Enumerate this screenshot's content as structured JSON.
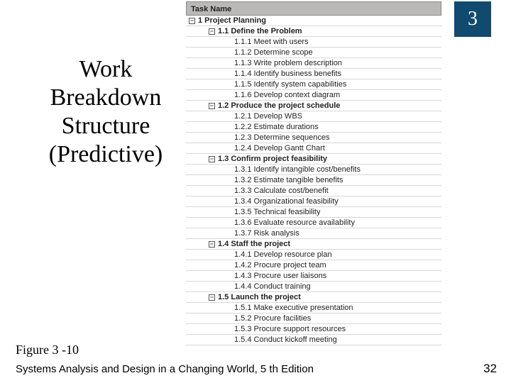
{
  "chapter": "3",
  "title": "Work Breakdown Structure (Predictive)",
  "figure_label": "Figure 3 -10",
  "footer_text": "Systems Analysis and Design in a Changing World, 5 th Edition",
  "page_number": "32",
  "wbs_header": "Task Name",
  "wbs": [
    {
      "level": 0,
      "bold": true,
      "box": true,
      "text": "1 Project Planning"
    },
    {
      "level": 1,
      "bold": true,
      "box": true,
      "text": "1.1 Define the Problem"
    },
    {
      "level": 2,
      "bold": false,
      "box": false,
      "text": "1.1.1 Meet with users"
    },
    {
      "level": 2,
      "bold": false,
      "box": false,
      "text": "1.1.2 Determine scope"
    },
    {
      "level": 2,
      "bold": false,
      "box": false,
      "text": "1.1.3 Write problem description"
    },
    {
      "level": 2,
      "bold": false,
      "box": false,
      "text": "1.1.4 Identify business benefits"
    },
    {
      "level": 2,
      "bold": false,
      "box": false,
      "text": "1.1.5 Identify system capabilities"
    },
    {
      "level": 2,
      "bold": false,
      "box": false,
      "text": "1.1.6 Develop context diagram"
    },
    {
      "level": 1,
      "bold": true,
      "box": true,
      "text": "1.2 Produce the project schedule"
    },
    {
      "level": 2,
      "bold": false,
      "box": false,
      "text": "1.2.1 Develop WBS"
    },
    {
      "level": 2,
      "bold": false,
      "box": false,
      "text": "1.2.2 Estimate durations"
    },
    {
      "level": 2,
      "bold": false,
      "box": false,
      "text": "1.2.3 Determine sequences"
    },
    {
      "level": 2,
      "bold": false,
      "box": false,
      "text": "1.2.4 Develop Gantt Chart"
    },
    {
      "level": 1,
      "bold": true,
      "box": true,
      "text": "1.3 Confirm project feasibility"
    },
    {
      "level": 2,
      "bold": false,
      "box": false,
      "text": "1.3.1 Identify intangible cost/benefits"
    },
    {
      "level": 2,
      "bold": false,
      "box": false,
      "text": "1.3.2 Estimate tangible benefits"
    },
    {
      "level": 2,
      "bold": false,
      "box": false,
      "text": "1.3.3 Calculate cost/benefit"
    },
    {
      "level": 2,
      "bold": false,
      "box": false,
      "text": "1.3.4 Organizational feasibility"
    },
    {
      "level": 2,
      "bold": false,
      "box": false,
      "text": "1.3.5 Technical feasibility"
    },
    {
      "level": 2,
      "bold": false,
      "box": false,
      "text": "1.3.6 Evaluate resource availability"
    },
    {
      "level": 2,
      "bold": false,
      "box": false,
      "text": "1.3.7 Risk analysis"
    },
    {
      "level": 1,
      "bold": true,
      "box": true,
      "text": "1.4 Staff the project"
    },
    {
      "level": 2,
      "bold": false,
      "box": false,
      "text": "1.4.1 Develop resource plan"
    },
    {
      "level": 2,
      "bold": false,
      "box": false,
      "text": "1.4.2 Procure project team"
    },
    {
      "level": 2,
      "bold": false,
      "box": false,
      "text": "1.4.3 Procure user liaisons"
    },
    {
      "level": 2,
      "bold": false,
      "box": false,
      "text": "1.4.4 Conduct training"
    },
    {
      "level": 1,
      "bold": true,
      "box": true,
      "text": "1.5 Launch the project"
    },
    {
      "level": 2,
      "bold": false,
      "box": false,
      "text": "1.5.1 Make executive presentation"
    },
    {
      "level": 2,
      "bold": false,
      "box": false,
      "text": "1.5.2 Procure facilities"
    },
    {
      "level": 2,
      "bold": false,
      "box": false,
      "text": "1.5.3 Procure support resources"
    },
    {
      "level": 2,
      "bold": false,
      "box": false,
      "text": "1.5.4 Conduct kickoff meeting"
    }
  ]
}
